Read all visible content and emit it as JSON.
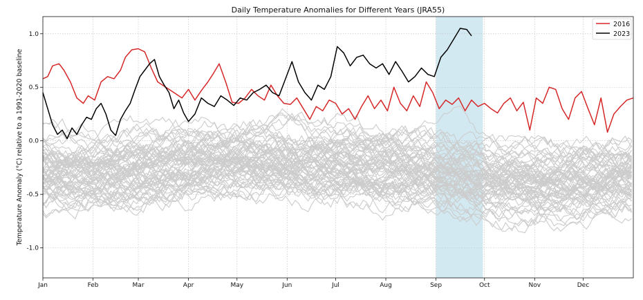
{
  "chart_data": {
    "type": "line",
    "title": "Daily Temperature Anomalies for Different Years (JRA55)",
    "xlabel": "",
    "ylabel": "Temperature Anomaly (°C) relative to a 1991-2020 baseline",
    "x_tick_labels": [
      "Jan",
      "Feb",
      "Mar",
      "Apr",
      "May",
      "Jun",
      "Jul",
      "Aug",
      "Sep",
      "Oct",
      "Nov",
      "Dec"
    ],
    "x_tick_days": [
      1,
      32,
      60,
      91,
      121,
      152,
      182,
      213,
      244,
      274,
      305,
      335
    ],
    "xlim": [
      1,
      366
    ],
    "y_ticks": [
      -1.0,
      -0.5,
      0.0,
      0.5,
      1.0
    ],
    "y_tick_labels": [
      "-1.0",
      "-0.5",
      "0.0",
      "0.5",
      "1.0"
    ],
    "ylim": [
      -1.28,
      1.16
    ],
    "grid": true,
    "legend_position": "top-right",
    "highlight_span": {
      "start_day": 244,
      "end_day": 273,
      "color": "#d3e9f1"
    },
    "background_series": {
      "color": "#cccccc",
      "count": 65,
      "description": "earlier years"
    },
    "series": [
      {
        "name": "2016",
        "color": "#d62728",
        "x": [
          1,
          4,
          7,
          11,
          14,
          18,
          22,
          26,
          29,
          33,
          37,
          41,
          45,
          49,
          52,
          56,
          60,
          64,
          68,
          72,
          75,
          79,
          83,
          87,
          91,
          95,
          99,
          103,
          106,
          110,
          114,
          118,
          122,
          126,
          130,
          134,
          138,
          142,
          146,
          150,
          154,
          158,
          162,
          166,
          170,
          174,
          178,
          182,
          186,
          190,
          194,
          198,
          202,
          206,
          210,
          214,
          218,
          222,
          226,
          230,
          234,
          238,
          242,
          246,
          250,
          254,
          258,
          262,
          266,
          270,
          274,
          278,
          282,
          286,
          290,
          294,
          298,
          302,
          306,
          310,
          314,
          318,
          322,
          326,
          330,
          334,
          338,
          342,
          346,
          350,
          354,
          358,
          362,
          366
        ],
        "values": [
          0.58,
          0.6,
          0.7,
          0.72,
          0.66,
          0.55,
          0.4,
          0.35,
          0.42,
          0.38,
          0.55,
          0.6,
          0.58,
          0.66,
          0.78,
          0.85,
          0.86,
          0.83,
          0.68,
          0.55,
          0.52,
          0.48,
          0.44,
          0.4,
          0.48,
          0.38,
          0.47,
          0.55,
          0.62,
          0.72,
          0.55,
          0.36,
          0.35,
          0.4,
          0.48,
          0.42,
          0.38,
          0.52,
          0.42,
          0.35,
          0.34,
          0.4,
          0.3,
          0.2,
          0.32,
          0.28,
          0.38,
          0.35,
          0.25,
          0.3,
          0.2,
          0.32,
          0.42,
          0.3,
          0.38,
          0.28,
          0.5,
          0.35,
          0.28,
          0.42,
          0.32,
          0.55,
          0.45,
          0.3,
          0.38,
          0.34,
          0.4,
          0.28,
          0.38,
          0.32,
          0.35,
          0.3,
          0.26,
          0.35,
          0.4,
          0.28,
          0.36,
          0.1,
          0.4,
          0.35,
          0.5,
          0.48,
          0.3,
          0.2,
          0.4,
          0.46,
          0.3,
          0.15,
          0.4,
          0.08,
          0.25,
          0.32,
          0.38,
          0.4
        ]
      },
      {
        "name": "2023",
        "color": "#000000",
        "x": [
          1,
          4,
          7,
          10,
          13,
          16,
          19,
          22,
          25,
          28,
          31,
          34,
          37,
          40,
          43,
          46,
          49,
          52,
          55,
          58,
          61,
          64,
          67,
          70,
          73,
          76,
          79,
          82,
          85,
          88,
          91,
          95,
          99,
          103,
          107,
          111,
          115,
          119,
          123,
          127,
          131,
          135,
          139,
          143,
          147,
          151,
          155,
          159,
          163,
          167,
          171,
          175,
          179,
          183,
          187,
          191,
          195,
          199,
          203,
          207,
          211,
          215,
          219,
          223,
          227,
          231,
          235,
          239,
          243,
          247,
          251,
          255,
          259,
          263,
          266
        ],
        "values": [
          0.45,
          0.3,
          0.15,
          0.06,
          0.1,
          0.02,
          0.12,
          0.06,
          0.15,
          0.22,
          0.2,
          0.3,
          0.35,
          0.25,
          0.1,
          0.05,
          0.2,
          0.28,
          0.35,
          0.48,
          0.6,
          0.66,
          0.72,
          0.76,
          0.6,
          0.52,
          0.45,
          0.3,
          0.38,
          0.26,
          0.18,
          0.25,
          0.4,
          0.35,
          0.32,
          0.42,
          0.38,
          0.33,
          0.4,
          0.38,
          0.45,
          0.48,
          0.52,
          0.45,
          0.42,
          0.58,
          0.74,
          0.55,
          0.45,
          0.38,
          0.52,
          0.48,
          0.6,
          0.88,
          0.82,
          0.7,
          0.78,
          0.8,
          0.72,
          0.68,
          0.72,
          0.62,
          0.74,
          0.65,
          0.55,
          0.6,
          0.68,
          0.62,
          0.6,
          0.78,
          0.85,
          0.95,
          1.05,
          1.04,
          0.98
        ]
      }
    ]
  }
}
